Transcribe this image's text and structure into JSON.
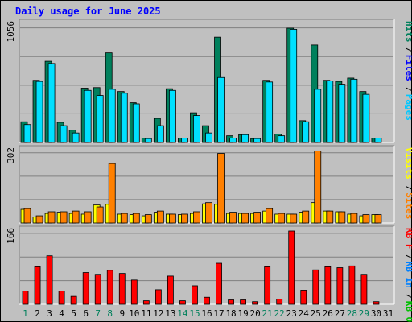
{
  "title": "Daily usage for June 2025",
  "chart_data": [
    {
      "type": "bar",
      "panel": "top",
      "max_label": "1056",
      "ylim": [
        0,
        1056
      ],
      "legend": [
        {
          "name": "Hits",
          "color": "#00805c"
        },
        {
          "name": "Files",
          "color": "#0000ff"
        },
        {
          "name": "Pages",
          "color": "#00c8ff"
        }
      ],
      "categories": [
        "1",
        "2",
        "3",
        "4",
        "5",
        "6",
        "7",
        "8",
        "9",
        "10",
        "11",
        "12",
        "13",
        "14",
        "15",
        "16",
        "17",
        "18",
        "19",
        "20",
        "21",
        "22",
        "23",
        "24",
        "25",
        "26",
        "27",
        "28",
        "29",
        "30",
        "31"
      ],
      "series": [
        {
          "name": "Hits",
          "color": "#00805c",
          "values": [
            185,
            555,
            725,
            180,
            110,
            485,
            490,
            800,
            455,
            355,
            40,
            215,
            480,
            40,
            265,
            150,
            940,
            60,
            70,
            35,
            555,
            75,
            1020,
            195,
            870,
            555,
            545,
            575,
            455,
            40,
            0
          ]
        },
        {
          "name": "Pages",
          "color": "#00e0ff",
          "values": [
            160,
            545,
            705,
            150,
            85,
            465,
            420,
            475,
            440,
            345,
            35,
            150,
            465,
            40,
            240,
            85,
            580,
            40,
            70,
            35,
            540,
            60,
            1010,
            185,
            475,
            550,
            520,
            565,
            430,
            40,
            0
          ]
        }
      ]
    },
    {
      "type": "bar",
      "panel": "middle",
      "max_label": "302",
      "ylim": [
        0,
        302
      ],
      "legend": [
        {
          "name": "Visits",
          "color": "#ffff00"
        },
        {
          "name": "Sites",
          "color": "#ff8000"
        }
      ],
      "categories": [
        "1",
        "2",
        "3",
        "4",
        "5",
        "6",
        "7",
        "8",
        "9",
        "10",
        "11",
        "12",
        "13",
        "14",
        "15",
        "16",
        "17",
        "18",
        "19",
        "20",
        "21",
        "22",
        "23",
        "24",
        "25",
        "26",
        "27",
        "28",
        "29",
        "30",
        "31"
      ],
      "series": [
        {
          "name": "Visits",
          "color": "#ffff00",
          "values": [
            57,
            25,
            40,
            45,
            40,
            37,
            75,
            78,
            37,
            35,
            30,
            45,
            37,
            35,
            40,
            80,
            78,
            40,
            40,
            40,
            50,
            37,
            37,
            45,
            85,
            50,
            47,
            37,
            30,
            35,
            0
          ]
        },
        {
          "name": "Sites",
          "color": "#ff8000",
          "values": [
            60,
            30,
            47,
            47,
            50,
            47,
            67,
            248,
            40,
            40,
            35,
            50,
            37,
            37,
            47,
            85,
            290,
            45,
            40,
            45,
            60,
            40,
            37,
            50,
            300,
            50,
            47,
            40,
            35,
            35,
            0
          ]
        }
      ]
    },
    {
      "type": "bar",
      "panel": "bottom",
      "max_label": "166",
      "ylim": [
        0,
        166
      ],
      "legend": [
        {
          "name": "KB F",
          "color": "#ff0000"
        },
        {
          "name": "KB In",
          "color": "#0080ff"
        },
        {
          "name": "KB Out",
          "color": "#00c000"
        }
      ],
      "categories": [
        "1",
        "2",
        "3",
        "4",
        "5",
        "6",
        "7",
        "8",
        "9",
        "10",
        "11",
        "12",
        "13",
        "14",
        "15",
        "16",
        "17",
        "18",
        "19",
        "20",
        "21",
        "22",
        "23",
        "24",
        "25",
        "26",
        "27",
        "28",
        "29",
        "30",
        "31"
      ],
      "series": [
        {
          "name": "KB F",
          "color": "#ff0000",
          "values": [
            30,
            85,
            110,
            30,
            18,
            72,
            68,
            77,
            70,
            55,
            8,
            33,
            64,
            8,
            42,
            16,
            93,
            10,
            10,
            6,
            85,
            12,
            166,
            32,
            78,
            85,
            83,
            87,
            68,
            6,
            0
          ]
        }
      ]
    }
  ],
  "x_labels": [
    "1",
    "2",
    "3",
    "4",
    "5",
    "6",
    "7",
    "8",
    "9",
    "10",
    "11",
    "12",
    "13",
    "14",
    "15",
    "16",
    "17",
    "18",
    "19",
    "20",
    "21",
    "22",
    "23",
    "24",
    "25",
    "26",
    "27",
    "28",
    "29",
    "30",
    "31"
  ],
  "weekend_days": [
    "1",
    "7",
    "8",
    "14",
    "15",
    "21",
    "22",
    "28",
    "29"
  ],
  "colors": {
    "weekday_label": "#000000",
    "weekend_label": "#00805c",
    "title": "#0000ff",
    "panel_bg": "#c0c0c0",
    "gridline": "#808080"
  }
}
